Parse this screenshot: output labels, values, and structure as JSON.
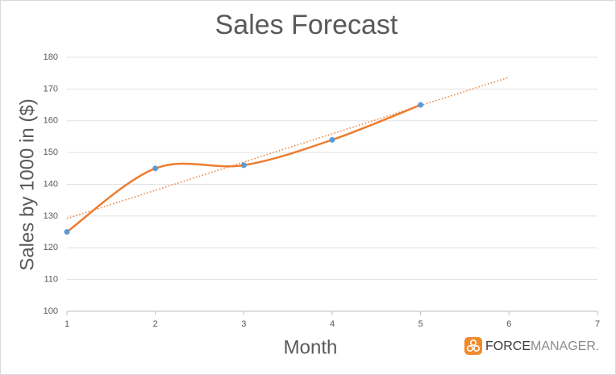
{
  "chart_data": {
    "type": "line",
    "title": "Sales Forecast",
    "x_label": "Month",
    "y_label": "Sales by 1000 in ($)",
    "x": [
      1,
      2,
      3,
      4,
      5
    ],
    "series": [
      {
        "name": "Sales",
        "color": "#ed7d31",
        "marker_color": "#5b9bd5",
        "smooth": true,
        "values": [
          125,
          145,
          146,
          154,
          165
        ]
      }
    ],
    "trendline": {
      "color": "#ed7d31",
      "x": [
        1,
        6
      ],
      "values": [
        129.2,
        173.7
      ]
    },
    "xlim": [
      1,
      7
    ],
    "xticks": [
      1,
      2,
      3,
      4,
      5,
      6,
      7
    ],
    "ylim": [
      100,
      180
    ],
    "yticks": [
      100,
      110,
      120,
      130,
      140,
      150,
      160,
      170,
      180
    ],
    "grid": true,
    "logo": [
      "FORCE",
      "MANAGER."
    ]
  }
}
